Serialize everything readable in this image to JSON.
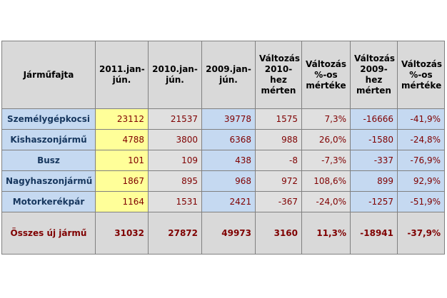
{
  "table": {
    "header": [
      [
        "Járműfajta"
      ],
      [
        "2011.jan-",
        "jún."
      ],
      [
        "2010.jan-",
        "jún."
      ],
      [
        "2009.jan-",
        "jún."
      ],
      [
        "Változás",
        "2010-",
        "hez",
        "mérten"
      ],
      [
        "Változás",
        "%-os",
        "mértéke"
      ],
      [
        "Változás",
        "2009-",
        "hez",
        "mérten"
      ],
      [
        "Változás",
        "%-os",
        "mértéke"
      ]
    ],
    "rows": [
      [
        "Személygépkocsi",
        "23112",
        "21537",
        "39778",
        "1575",
        "7,3%",
        "-16666",
        "-41,9%"
      ],
      [
        "Kishaszonjármű",
        "4788",
        "3800",
        "6368",
        "988",
        "26,0%",
        "-1580",
        "-24,8%"
      ],
      [
        "Busz",
        "101",
        "109",
        "438",
        "-8",
        "-7,3%",
        "-337",
        "-76,9%"
      ],
      [
        "Nagyhaszonjármű",
        "1867",
        "895",
        "968",
        "972",
        "108,6%",
        "899",
        "92,9%"
      ],
      [
        "Motorkerékpár",
        "1164",
        "1531",
        "2421",
        "-367",
        "-24,0%",
        "-1257",
        "-51,9%"
      ]
    ],
    "total": [
      "Összes új jármű",
      "31032",
      "27872",
      "49973",
      "3160",
      "11,3%",
      "-18941",
      "-37,9%"
    ]
  }
}
